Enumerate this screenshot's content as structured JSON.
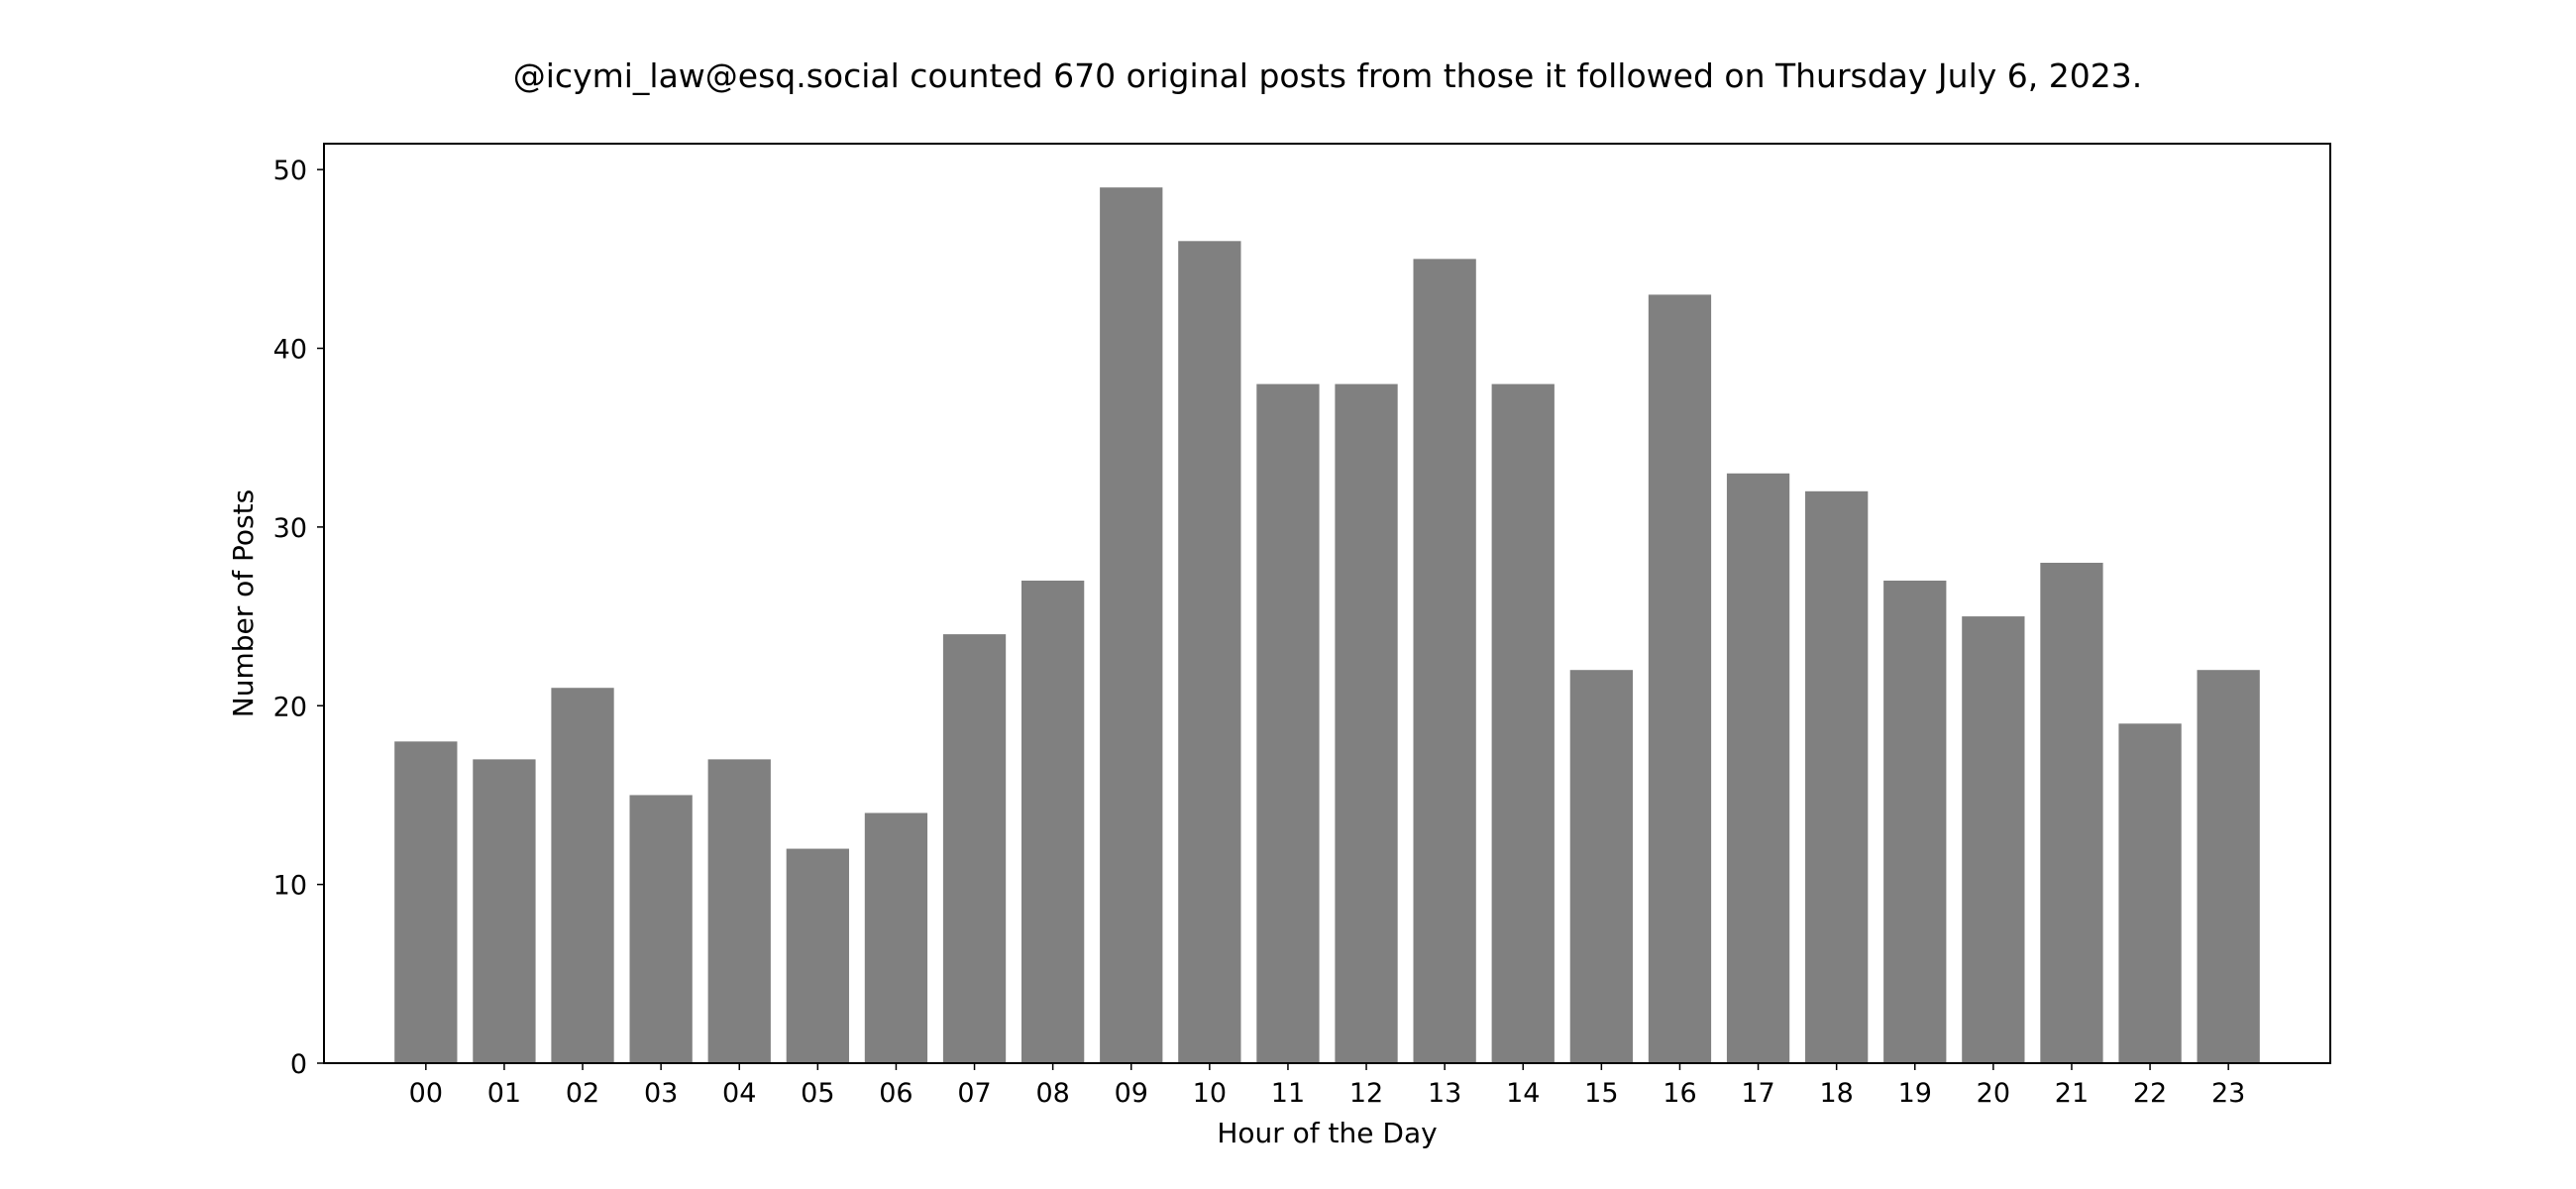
{
  "chart_data": {
    "type": "bar",
    "title": "@icymi_law@esq.social counted 670 original posts from those it followed on Thursday July 6, 2023.",
    "xlabel": "Hour of the Day",
    "ylabel": "Number of Posts",
    "categories": [
      "00",
      "01",
      "02",
      "03",
      "04",
      "05",
      "06",
      "07",
      "08",
      "09",
      "10",
      "11",
      "12",
      "13",
      "14",
      "15",
      "16",
      "17",
      "18",
      "19",
      "20",
      "21",
      "22",
      "23"
    ],
    "values": [
      18,
      17,
      21,
      15,
      17,
      12,
      14,
      24,
      27,
      49,
      46,
      38,
      38,
      45,
      38,
      22,
      43,
      33,
      32,
      27,
      25,
      28,
      19,
      22
    ],
    "ylim": [
      0,
      51.45
    ],
    "yticks": [
      "0",
      "10",
      "20",
      "30",
      "40",
      "50"
    ],
    "bar_color": "#808080",
    "grid": false,
    "legend": "none"
  }
}
